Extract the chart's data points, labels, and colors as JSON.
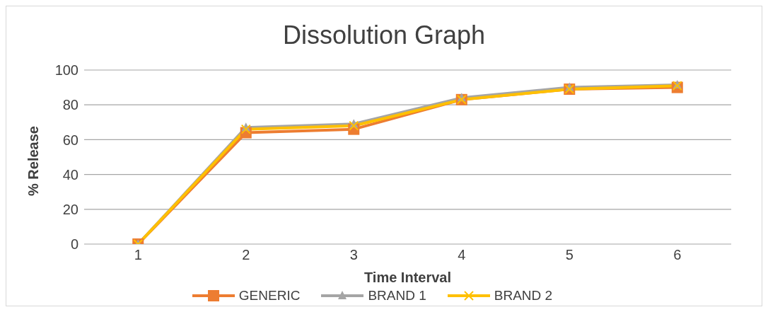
{
  "chart_data": {
    "type": "line",
    "title": "Dissolution Graph",
    "xlabel": "Time Interval",
    "ylabel": "% Release",
    "categories": [
      "1",
      "2",
      "3",
      "4",
      "5",
      "6"
    ],
    "series": [
      {
        "name": "GENERIC",
        "color": "#ed7d31",
        "marker": "square",
        "values": [
          0,
          64,
          66,
          83,
          89,
          90
        ]
      },
      {
        "name": "BRAND 1",
        "color": "#a5a5a5",
        "marker": "triangle",
        "values": [
          0,
          67,
          69,
          84,
          90,
          91.5
        ]
      },
      {
        "name": "BRAND 2",
        "color": "#ffc000",
        "marker": "cross",
        "values": [
          0,
          66,
          68,
          83,
          89,
          91
        ]
      }
    ],
    "ylim": [
      0,
      100
    ],
    "yticks": [
      0,
      20,
      40,
      60,
      80,
      100
    ],
    "grid": "y",
    "legend": "bottom",
    "line_style": "solid"
  }
}
